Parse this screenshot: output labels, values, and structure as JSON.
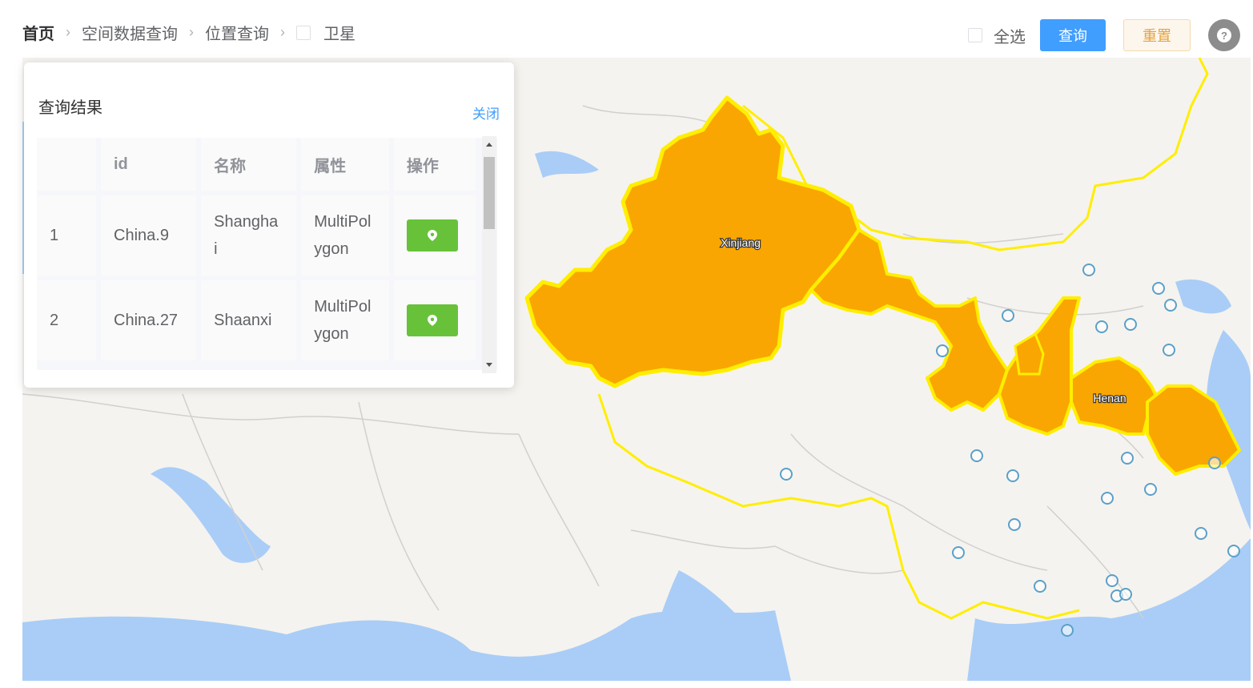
{
  "breadcrumb": {
    "home": "首页",
    "items": [
      "空间数据查询",
      "位置查询"
    ],
    "satellite_label": "卫星"
  },
  "toolbar": {
    "select_all_label": "全选",
    "query_label": "查询",
    "reset_label": "重置",
    "help_glyph": "?"
  },
  "result_panel": {
    "title": "查询结果",
    "close_label": "关闭",
    "columns": [
      "",
      "id",
      "名称",
      "属性",
      "操作"
    ],
    "rows": [
      {
        "index": "1",
        "id": "China.9",
        "name": "Shanghai",
        "name_wrapped_1": "Shangha",
        "name_wrapped_2": "i",
        "attr_1": "MultiPol",
        "attr_2": "ygon"
      },
      {
        "index": "2",
        "id": "China.27",
        "name": "Shaanxi",
        "attr_1": "MultiPol",
        "attr_2": "ygon"
      }
    ]
  },
  "map": {
    "labels": {
      "xinjiang": "Xinjiang",
      "henan": "Henan"
    },
    "colors": {
      "highlight_fill": "#f9a602",
      "highlight_stroke": "#ffee00",
      "water": "#a9cdf7",
      "land": "#f5f3ef",
      "border": "#d0d0d0",
      "marker": "#5ba0c9"
    }
  },
  "colors": {
    "primary": "#409eff",
    "success": "#67c23a",
    "warning": "#e6a23c"
  }
}
